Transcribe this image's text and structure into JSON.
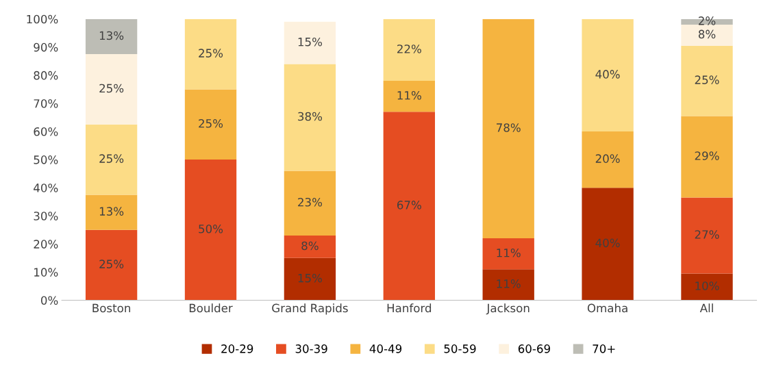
{
  "chart_data": {
    "type": "bar",
    "stacked": true,
    "categories": [
      "Boston",
      "Boulder",
      "Grand Rapids",
      "Hanford",
      "Jackson",
      "Omaha",
      "All"
    ],
    "series": [
      {
        "name": "20-29",
        "color": "#b22d00",
        "values": [
          null,
          null,
          15,
          null,
          11,
          40,
          9.5
        ],
        "value_labels": [
          null,
          null,
          "15%",
          null,
          "11%",
          "40%",
          "10%"
        ]
      },
      {
        "name": "30-39",
        "color": "#e54d22",
        "values": [
          25,
          50,
          8,
          67,
          11,
          null,
          27
        ],
        "value_labels": [
          "25%",
          "50%",
          "8%",
          "67%",
          "11%",
          null,
          "27%"
        ]
      },
      {
        "name": "40-49",
        "color": "#f5b440",
        "values": [
          12.5,
          25,
          23,
          11,
          78,
          20,
          29
        ],
        "value_labels": [
          "13%",
          "25%",
          "23%",
          "11%",
          "78%",
          "20%",
          "29%"
        ]
      },
      {
        "name": "50-59",
        "color": "#fcdc86",
        "values": [
          25,
          25,
          38,
          22,
          null,
          40,
          25
        ],
        "value_labels": [
          "25%",
          "25%",
          "38%",
          "22%",
          null,
          "40%",
          "25%"
        ]
      },
      {
        "name": "60-69",
        "color": "#fdf1de",
        "values": [
          25,
          null,
          15,
          null,
          null,
          null,
          7.5
        ],
        "value_labels": [
          "25%",
          null,
          "15%",
          null,
          null,
          null,
          "8%"
        ]
      },
      {
        "name": "70+",
        "color": "#bdbdb5",
        "values": [
          12.5,
          null,
          null,
          null,
          null,
          null,
          2
        ],
        "value_labels": [
          "13%",
          null,
          null,
          null,
          null,
          null,
          "2%"
        ]
      }
    ],
    "ylim": [
      0,
      100
    ],
    "yticks": [
      {
        "value": 0,
        "label": "0%"
      },
      {
        "value": 10,
        "label": "10%"
      },
      {
        "value": 20,
        "label": "20%"
      },
      {
        "value": 30,
        "label": "30%"
      },
      {
        "value": 40,
        "label": "40%"
      },
      {
        "value": 50,
        "label": "50%"
      },
      {
        "value": 60,
        "label": "60%"
      },
      {
        "value": 70,
        "label": "70%"
      },
      {
        "value": 80,
        "label": "80%"
      },
      {
        "value": 90,
        "label": "90%"
      },
      {
        "value": 100,
        "label": "100%"
      }
    ],
    "grid": false,
    "legend": "bottom"
  }
}
